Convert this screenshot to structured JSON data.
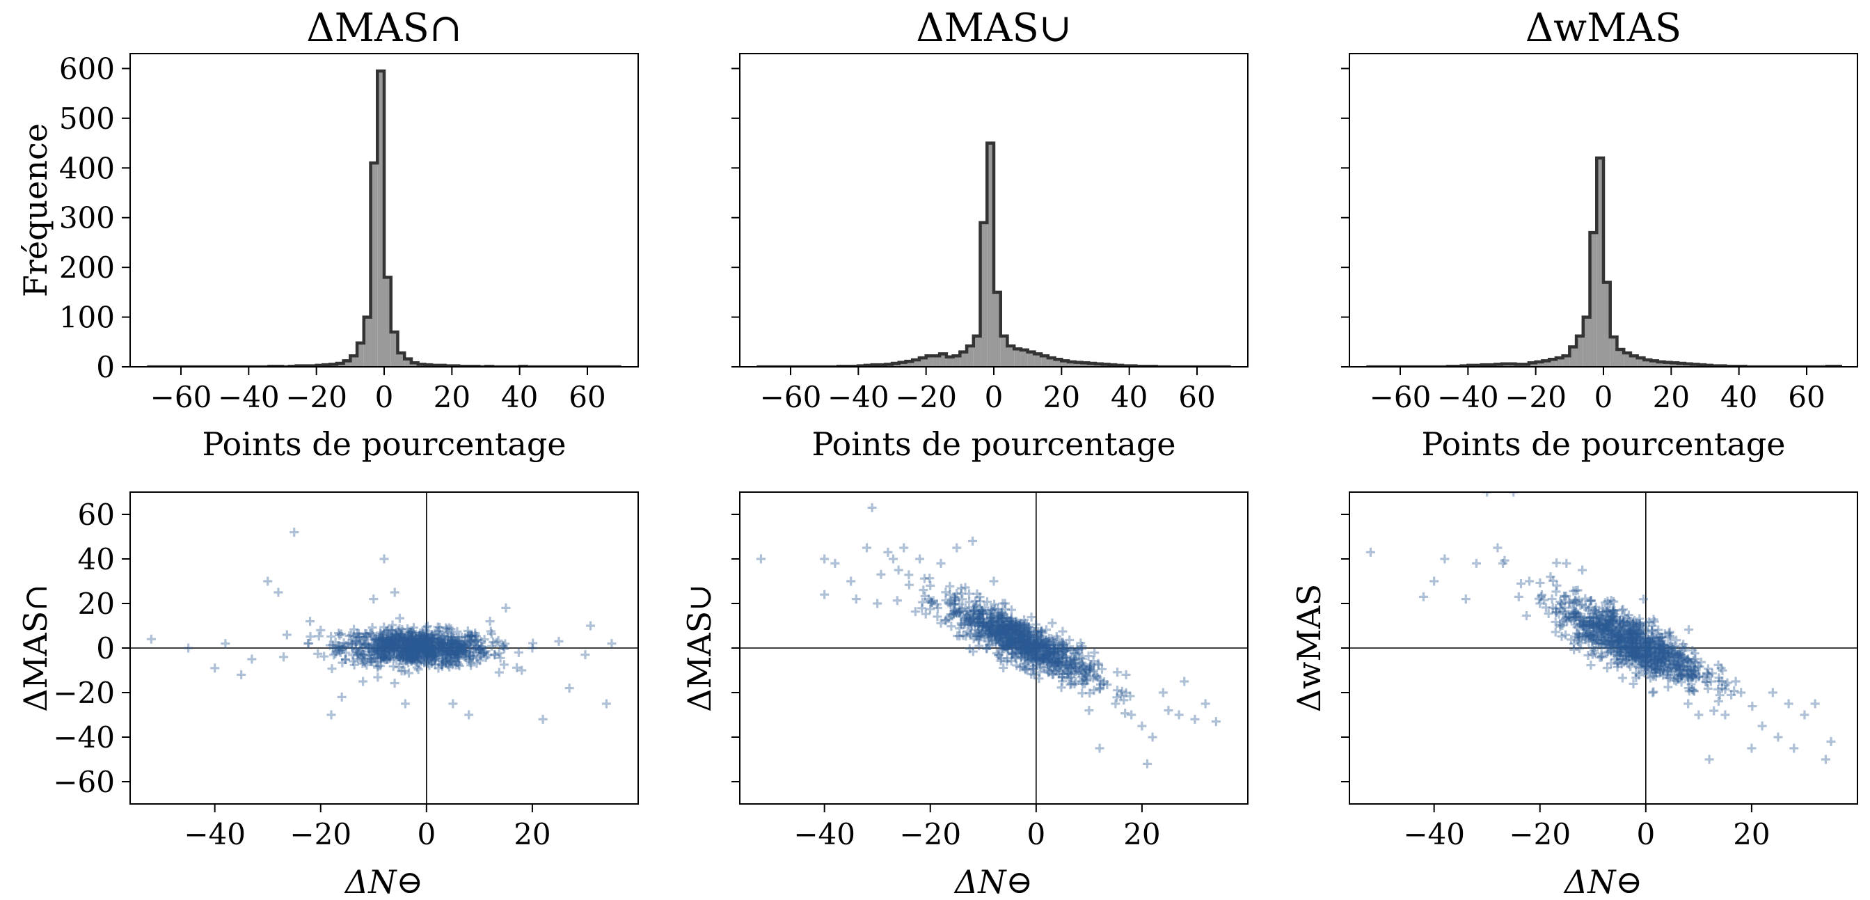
{
  "colors": {
    "hist_fill": "#9a9a9a",
    "hist_edge": "#333333",
    "scatter": "#2a5a93",
    "axes": "#000000"
  },
  "chart_data": [
    {
      "type": "histogram",
      "title": "ΔMAS∩",
      "xlabel": "Points de pourcentage",
      "ylabel": "Fréquence",
      "xlim": [
        -75,
        75
      ],
      "ylim": [
        0,
        630
      ],
      "xticks": [
        "−60",
        "−40",
        "−20",
        "0",
        "20",
        "40",
        "60"
      ],
      "yticks": [
        "0",
        "100",
        "200",
        "300",
        "400",
        "500",
        "600"
      ],
      "bin_edges": [
        -70,
        -68,
        -66,
        -64,
        -62,
        -60,
        -58,
        -56,
        -54,
        -52,
        -50,
        -48,
        -46,
        -44,
        -42,
        -40,
        -38,
        -36,
        -34,
        -32,
        -30,
        -28,
        -26,
        -24,
        -22,
        -20,
        -18,
        -16,
        -14,
        -12,
        -10,
        -8,
        -6,
        -4,
        -2,
        0,
        2,
        4,
        6,
        8,
        10,
        12,
        14,
        16,
        18,
        20,
        22,
        24,
        26,
        28,
        30,
        32,
        34,
        36,
        38,
        40,
        42,
        44,
        46,
        48,
        50,
        52,
        54,
        56,
        58,
        60,
        62,
        64,
        66,
        68,
        70
      ],
      "counts": [
        0,
        0,
        0,
        0,
        0,
        0,
        0,
        0,
        0,
        0,
        0,
        0,
        0,
        0,
        0,
        0,
        0,
        0,
        1,
        1,
        0,
        1,
        2,
        2,
        2,
        3,
        4,
        5,
        7,
        12,
        22,
        48,
        100,
        410,
        595,
        180,
        70,
        28,
        16,
        8,
        5,
        4,
        3,
        3,
        2,
        2,
        1,
        1,
        1,
        0,
        1,
        0,
        0,
        0,
        0,
        1,
        0,
        0,
        0,
        0,
        0,
        0,
        0,
        0,
        0,
        0,
        0,
        0,
        0,
        0
      ],
      "note_counts": "counts are for the 2-point bins starting at -70"
    },
    {
      "type": "histogram",
      "title": "ΔMAS∪",
      "xlabel": "Points de pourcentage",
      "ylabel": "",
      "xlim": [
        -75,
        75
      ],
      "ylim": [
        0,
        630
      ],
      "xticks": [
        "−60",
        "−40",
        "−20",
        "0",
        "20",
        "40",
        "60"
      ],
      "yticks": [],
      "bin_edges": [
        -70,
        -68,
        -66,
        -64,
        -62,
        -60,
        -58,
        -56,
        -54,
        -52,
        -50,
        -48,
        -46,
        -44,
        -42,
        -40,
        -38,
        -36,
        -34,
        -32,
        -30,
        -28,
        -26,
        -24,
        -22,
        -20,
        -18,
        -16,
        -14,
        -12,
        -10,
        -8,
        -6,
        -4,
        -2,
        0,
        2,
        4,
        6,
        8,
        10,
        12,
        14,
        16,
        18,
        20,
        22,
        24,
        26,
        28,
        30,
        32,
        34,
        36,
        38,
        40,
        42,
        44,
        46,
        48,
        50,
        52,
        54,
        56,
        58,
        60,
        62,
        64,
        66,
        68,
        70
      ],
      "counts": [
        0,
        0,
        0,
        0,
        0,
        0,
        0,
        0,
        0,
        0,
        0,
        0,
        1,
        1,
        1,
        2,
        3,
        4,
        4,
        5,
        7,
        9,
        11,
        14,
        18,
        22,
        22,
        26,
        20,
        22,
        30,
        42,
        62,
        290,
        450,
        150,
        62,
        42,
        36,
        34,
        30,
        26,
        22,
        18,
        15,
        12,
        10,
        9,
        8,
        7,
        6,
        5,
        4,
        3,
        2,
        2,
        1,
        1,
        1,
        0,
        0,
        0,
        0,
        0,
        0,
        0,
        0,
        0,
        0,
        0
      ]
    },
    {
      "type": "histogram",
      "title": "ΔwMAS",
      "xlabel": "Points de pourcentage",
      "ylabel": "",
      "xlim": [
        -75,
        75
      ],
      "ylim": [
        0,
        630
      ],
      "xticks": [
        "−60",
        "−40",
        "−20",
        "0",
        "20",
        "40",
        "60"
      ],
      "yticks": [],
      "bin_edges": [
        -70,
        -68,
        -66,
        -64,
        -62,
        -60,
        -58,
        -56,
        -54,
        -52,
        -50,
        -48,
        -46,
        -44,
        -42,
        -40,
        -38,
        -36,
        -34,
        -32,
        -30,
        -28,
        -26,
        -24,
        -22,
        -20,
        -18,
        -16,
        -14,
        -12,
        -10,
        -8,
        -6,
        -4,
        -2,
        0,
        2,
        4,
        6,
        8,
        10,
        12,
        14,
        16,
        18,
        20,
        22,
        24,
        26,
        28,
        30,
        32,
        34,
        36,
        38,
        40,
        42,
        44,
        46,
        48,
        50,
        52,
        54,
        56,
        58,
        60,
        62,
        64,
        66,
        68,
        70
      ],
      "counts": [
        0,
        0,
        0,
        0,
        0,
        0,
        0,
        0,
        0,
        0,
        0,
        0,
        1,
        1,
        2,
        3,
        3,
        4,
        4,
        5,
        6,
        6,
        5,
        5,
        8,
        10,
        12,
        15,
        18,
        22,
        40,
        62,
        100,
        270,
        420,
        170,
        60,
        35,
        28,
        22,
        18,
        14,
        12,
        10,
        9,
        8,
        7,
        6,
        5,
        4,
        3,
        2,
        2,
        1,
        1,
        1,
        0,
        0,
        0,
        0,
        0,
        0,
        0,
        0,
        0,
        0,
        0,
        0,
        1,
        1
      ]
    },
    {
      "type": "scatter",
      "title": "",
      "xlabel": "ΔN⊖",
      "ylabel": "ΔMAS∩",
      "xlim": [
        -56,
        40
      ],
      "ylim": [
        -70,
        70
      ],
      "xticks": [
        "−40",
        "−20",
        "0",
        "20"
      ],
      "yticks": [
        "−60",
        "−40",
        "−20",
        "0",
        "20",
        "40",
        "60"
      ],
      "marker": "+",
      "reference_lines": {
        "x": 0,
        "y": 0
      },
      "cluster": {
        "x_mean": -2,
        "x_sd": 7,
        "slope": -0.05,
        "y_sd": 4,
        "n": 900
      },
      "outliers": [
        [
          -52,
          4
        ],
        [
          -40,
          -9
        ],
        [
          -38,
          2
        ],
        [
          -35,
          -12
        ],
        [
          -33,
          -5
        ],
        [
          -30,
          30
        ],
        [
          -28,
          25
        ],
        [
          -27,
          -4
        ],
        [
          -25,
          52
        ],
        [
          -22,
          12
        ],
        [
          -20,
          8
        ],
        [
          -18,
          -30
        ],
        [
          -16,
          -22
        ],
        [
          -10,
          22
        ],
        [
          -8,
          40
        ],
        [
          -6,
          25
        ],
        [
          -4,
          -25
        ],
        [
          5,
          -25
        ],
        [
          8,
          -30
        ],
        [
          15,
          18
        ],
        [
          18,
          -10
        ],
        [
          22,
          -32
        ],
        [
          27,
          -18
        ],
        [
          30,
          -3
        ],
        [
          31,
          10
        ],
        [
          34,
          -25
        ],
        [
          35,
          2
        ],
        [
          25,
          3
        ],
        [
          20,
          0
        ],
        [
          12,
          12
        ],
        [
          -45,
          0
        ],
        [
          -12,
          -15
        ]
      ]
    },
    {
      "type": "scatter",
      "title": "",
      "xlabel": "ΔN⊖",
      "ylabel": "ΔMAS∪",
      "xlim": [
        -56,
        40
      ],
      "ylim": [
        -70,
        70
      ],
      "xticks": [
        "−40",
        "−20",
        "0",
        "20"
      ],
      "yticks": [],
      "marker": "+",
      "reference_lines": {
        "x": 0,
        "y": 0
      },
      "cluster": {
        "x_mean": -3,
        "x_sd": 7,
        "slope": -1.1,
        "y_sd": 5,
        "n": 900
      },
      "outliers": [
        [
          -52,
          40
        ],
        [
          -40,
          40
        ],
        [
          -38,
          38
        ],
        [
          -35,
          30
        ],
        [
          -32,
          45
        ],
        [
          -31,
          63
        ],
        [
          -28,
          43
        ],
        [
          -27,
          40
        ],
        [
          -25,
          45
        ],
        [
          -22,
          40
        ],
        [
          -20,
          28
        ],
        [
          -18,
          38
        ],
        [
          -15,
          45
        ],
        [
          -12,
          48
        ],
        [
          15,
          -25
        ],
        [
          18,
          -30
        ],
        [
          20,
          -35
        ],
        [
          21,
          -52
        ],
        [
          22,
          -40
        ],
        [
          24,
          -20
        ],
        [
          25,
          -28
        ],
        [
          27,
          -30
        ],
        [
          30,
          -32
        ],
        [
          32,
          -25
        ],
        [
          34,
          -33
        ],
        [
          -30,
          20
        ],
        [
          -34,
          22
        ],
        [
          -40,
          24
        ],
        [
          12,
          -45
        ],
        [
          10,
          -28
        ],
        [
          -8,
          30
        ],
        [
          -26,
          35
        ],
        [
          28,
          -15
        ],
        [
          17,
          -12
        ]
      ]
    },
    {
      "type": "scatter",
      "title": "",
      "xlabel": "ΔN⊖",
      "ylabel": "ΔwMAS",
      "xlim": [
        -56,
        40
      ],
      "ylim": [
        -70,
        70
      ],
      "xticks": [
        "−40",
        "−20",
        "0",
        "20"
      ],
      "yticks": [],
      "marker": "+",
      "reference_lines": {
        "x": 0,
        "y": 0
      },
      "cluster": {
        "x_mean": -3,
        "x_sd": 7,
        "slope": -1.0,
        "y_sd": 6,
        "n": 900
      },
      "outliers": [
        [
          -52,
          43
        ],
        [
          -42,
          23
        ],
        [
          -40,
          30
        ],
        [
          -38,
          40
        ],
        [
          -34,
          22
        ],
        [
          -32,
          38
        ],
        [
          -30,
          70
        ],
        [
          -28,
          45
        ],
        [
          -25,
          70
        ],
        [
          -24,
          23
        ],
        [
          -22,
          30
        ],
        [
          -20,
          20
        ],
        [
          -18,
          32
        ],
        [
          -15,
          38
        ],
        [
          12,
          -50
        ],
        [
          15,
          -30
        ],
        [
          18,
          -20
        ],
        [
          20,
          -45
        ],
        [
          22,
          -35
        ],
        [
          25,
          -40
        ],
        [
          28,
          -45
        ],
        [
          30,
          -30
        ],
        [
          32,
          -25
        ],
        [
          34,
          -50
        ],
        [
          35,
          -42
        ],
        [
          27,
          -25
        ],
        [
          10,
          -30
        ],
        [
          8,
          -25
        ],
        [
          -12,
          35
        ],
        [
          -27,
          38
        ],
        [
          24,
          -20
        ],
        [
          17,
          -15
        ]
      ]
    }
  ]
}
